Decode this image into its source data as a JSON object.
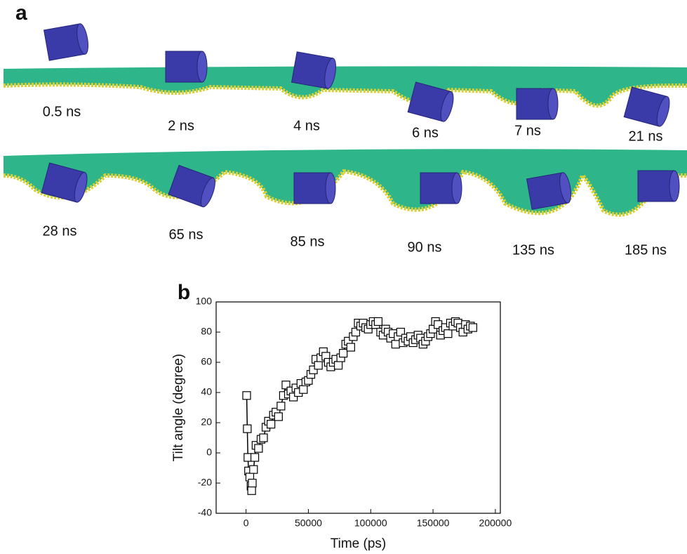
{
  "panel_a": {
    "label": "a",
    "snapshots": [
      "0.5 ns",
      "2 ns",
      "4 ns",
      "6 ns",
      "7 ns",
      "21 ns",
      "28 ns",
      "65 ns",
      "85 ns",
      "90 ns",
      "135 ns",
      "185 ns"
    ]
  },
  "chart_data": {
    "type": "scatter",
    "panel_label": "b",
    "x_label": "Time (ps)",
    "y_label": "Tilt angle (degree)",
    "x": [
      500,
      1000,
      1500,
      2000,
      3000,
      4000,
      4500,
      5000,
      6000,
      7000,
      8000,
      10000,
      12000,
      14000,
      16000,
      18000,
      20000,
      22000,
      24000,
      26000,
      28000,
      30000,
      32000,
      34000,
      36000,
      38000,
      40000,
      42000,
      44000,
      46000,
      48000,
      50000,
      52000,
      54000,
      56000,
      58000,
      60000,
      62000,
      64000,
      66000,
      68000,
      70000,
      72000,
      74000,
      76000,
      78000,
      80000,
      82000,
      84000,
      86000,
      88000,
      90000,
      92000,
      94000,
      96000,
      98000,
      100000,
      102000,
      104000,
      106000,
      108000,
      110000,
      112000,
      114000,
      116000,
      118000,
      120000,
      122000,
      124000,
      126000,
      128000,
      130000,
      132000,
      134000,
      136000,
      138000,
      140000,
      142000,
      144000,
      146000,
      148000,
      150000,
      152000,
      154000,
      156000,
      158000,
      160000,
      162000,
      164000,
      166000,
      168000,
      170000,
      172000,
      174000,
      176000,
      178000,
      180000,
      182000
    ],
    "values": [
      38,
      16,
      -3,
      -12,
      -16,
      -22,
      -25,
      -20,
      -11,
      -3,
      5,
      3,
      9,
      10,
      17,
      21,
      19,
      25,
      27,
      24,
      31,
      38,
      45,
      39,
      41,
      37,
      43,
      40,
      46,
      42,
      47,
      48,
      52,
      55,
      62,
      58,
      63,
      67,
      64,
      60,
      57,
      60,
      62,
      58,
      63,
      66,
      72,
      74,
      70,
      77,
      80,
      86,
      84,
      86,
      83,
      82,
      85,
      87,
      85,
      87,
      80,
      78,
      82,
      80,
      76,
      79,
      72,
      77,
      80,
      73,
      76,
      74,
      77,
      73,
      75,
      78,
      76,
      72,
      74,
      77,
      79,
      82,
      87,
      85,
      78,
      81,
      83,
      79,
      86,
      84,
      87,
      86,
      83,
      80,
      85,
      82,
      84,
      83
    ],
    "xlim": [
      -24000,
      204000
    ],
    "ylim": [
      -40,
      100
    ],
    "xticks": [
      0,
      50000,
      100000,
      150000,
      200000
    ],
    "yticks": [
      -40,
      -20,
      0,
      20,
      40,
      60,
      80,
      100
    ],
    "color": "#000000",
    "marker": "square"
  }
}
